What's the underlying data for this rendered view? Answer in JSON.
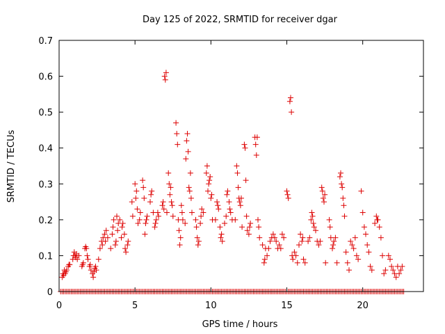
{
  "chart_data": {
    "type": "scatter",
    "title": "Day 125 of 2022, SRMTID for receiver dgar",
    "xlabel": "GPS time / hours",
    "ylabel": "SRMTID / TECUs",
    "xlim": [
      0,
      24
    ],
    "ylim": [
      0,
      0.7
    ],
    "xticks": [
      0,
      5,
      10,
      15,
      20
    ],
    "yticks": [
      0,
      0.1,
      0.2,
      0.3,
      0.4,
      0.5,
      0.6,
      0.7
    ],
    "xtick_labels": [
      "0",
      "5",
      "10",
      "15",
      "20"
    ],
    "ytick_labels": [
      "0",
      "0.1",
      "0.2",
      "0.3",
      "0.4",
      "0.5",
      "0.6",
      "0.7"
    ],
    "marker": "+",
    "color": "#dd0000",
    "baseline": {
      "y": 0,
      "x_start": 0.1,
      "x_end": 22.7,
      "step": 0.1
    },
    "points": [
      [
        0.2,
        0.04
      ],
      [
        0.25,
        0.05
      ],
      [
        0.3,
        0.045
      ],
      [
        0.35,
        0.06
      ],
      [
        0.4,
        0.05
      ],
      [
        0.45,
        0.055
      ],
      [
        0.5,
        0.06
      ],
      [
        0.6,
        0.07
      ],
      [
        0.65,
        0.075
      ],
      [
        0.7,
        0.075
      ],
      [
        0.9,
        0.09
      ],
      [
        0.95,
        0.1
      ],
      [
        1.0,
        0.11
      ],
      [
        1.05,
        0.1
      ],
      [
        1.1,
        0.095
      ],
      [
        1.15,
        0.105
      ],
      [
        1.2,
        0.09
      ],
      [
        1.3,
        0.1
      ],
      [
        1.5,
        0.07
      ],
      [
        1.55,
        0.075
      ],
      [
        1.6,
        0.08
      ],
      [
        1.7,
        0.12
      ],
      [
        1.75,
        0.125
      ],
      [
        1.8,
        0.12
      ],
      [
        1.85,
        0.1
      ],
      [
        1.9,
        0.09
      ],
      [
        2.0,
        0.07
      ],
      [
        2.05,
        0.075
      ],
      [
        2.1,
        0.06
      ],
      [
        2.2,
        0.05
      ],
      [
        2.25,
        0.04
      ],
      [
        2.3,
        0.055
      ],
      [
        2.35,
        0.065
      ],
      [
        2.4,
        0.07
      ],
      [
        2.45,
        0.06
      ],
      [
        2.6,
        0.09
      ],
      [
        2.7,
        0.12
      ],
      [
        2.8,
        0.14
      ],
      [
        2.85,
        0.13
      ],
      [
        2.9,
        0.15
      ],
      [
        3.0,
        0.16
      ],
      [
        3.05,
        0.14
      ],
      [
        3.1,
        0.17
      ],
      [
        3.2,
        0.15
      ],
      [
        3.4,
        0.12
      ],
      [
        3.5,
        0.16
      ],
      [
        3.55,
        0.18
      ],
      [
        3.6,
        0.2
      ],
      [
        3.7,
        0.13
      ],
      [
        3.75,
        0.14
      ],
      [
        3.8,
        0.21
      ],
      [
        3.85,
        0.17
      ],
      [
        3.9,
        0.19
      ],
      [
        4.0,
        0.2
      ],
      [
        4.1,
        0.15
      ],
      [
        4.15,
        0.18
      ],
      [
        4.2,
        0.19
      ],
      [
        4.3,
        0.16
      ],
      [
        4.35,
        0.12
      ],
      [
        4.4,
        0.11
      ],
      [
        4.5,
        0.13
      ],
      [
        4.55,
        0.14
      ],
      [
        4.8,
        0.25
      ],
      [
        4.85,
        0.21
      ],
      [
        5.0,
        0.3
      ],
      [
        5.05,
        0.26
      ],
      [
        5.1,
        0.28
      ],
      [
        5.15,
        0.23
      ],
      [
        5.2,
        0.19
      ],
      [
        5.3,
        0.2
      ],
      [
        5.35,
        0.22
      ],
      [
        5.5,
        0.31
      ],
      [
        5.55,
        0.29
      ],
      [
        5.6,
        0.26
      ],
      [
        5.65,
        0.16
      ],
      [
        5.7,
        0.19
      ],
      [
        5.75,
        0.2
      ],
      [
        5.8,
        0.21
      ],
      [
        6.0,
        0.25
      ],
      [
        6.05,
        0.27
      ],
      [
        6.1,
        0.28
      ],
      [
        6.2,
        0.22
      ],
      [
        6.3,
        0.18
      ],
      [
        6.35,
        0.19
      ],
      [
        6.4,
        0.2
      ],
      [
        6.5,
        0.22
      ],
      [
        6.55,
        0.21
      ],
      [
        6.8,
        0.24
      ],
      [
        6.85,
        0.25
      ],
      [
        6.9,
        0.23
      ],
      [
        6.95,
        0.6
      ],
      [
        7.0,
        0.59
      ],
      [
        7.05,
        0.61
      ],
      [
        7.1,
        0.22
      ],
      [
        7.2,
        0.33
      ],
      [
        7.25,
        0.3
      ],
      [
        7.3,
        0.27
      ],
      [
        7.35,
        0.29
      ],
      [
        7.4,
        0.25
      ],
      [
        7.45,
        0.24
      ],
      [
        7.5,
        0.21
      ],
      [
        7.7,
        0.47
      ],
      [
        7.75,
        0.44
      ],
      [
        7.8,
        0.41
      ],
      [
        7.85,
        0.2
      ],
      [
        7.9,
        0.17
      ],
      [
        7.95,
        0.13
      ],
      [
        8.0,
        0.15
      ],
      [
        8.05,
        0.24
      ],
      [
        8.1,
        0.22
      ],
      [
        8.15,
        0.2
      ],
      [
        8.3,
        0.19
      ],
      [
        8.35,
        0.37
      ],
      [
        8.4,
        0.42
      ],
      [
        8.45,
        0.44
      ],
      [
        8.5,
        0.39
      ],
      [
        8.55,
        0.29
      ],
      [
        8.6,
        0.28
      ],
      [
        8.65,
        0.33
      ],
      [
        8.7,
        0.26
      ],
      [
        8.75,
        0.22
      ],
      [
        9.0,
        0.2
      ],
      [
        9.05,
        0.18
      ],
      [
        9.1,
        0.15
      ],
      [
        9.15,
        0.13
      ],
      [
        9.2,
        0.14
      ],
      [
        9.3,
        0.19
      ],
      [
        9.35,
        0.21
      ],
      [
        9.4,
        0.23
      ],
      [
        9.5,
        0.22
      ],
      [
        9.7,
        0.33
      ],
      [
        9.75,
        0.35
      ],
      [
        9.8,
        0.28
      ],
      [
        9.85,
        0.3
      ],
      [
        9.9,
        0.31
      ],
      [
        9.95,
        0.32
      ],
      [
        10.0,
        0.26
      ],
      [
        10.05,
        0.27
      ],
      [
        10.1,
        0.2
      ],
      [
        10.3,
        0.2
      ],
      [
        10.4,
        0.25
      ],
      [
        10.45,
        0.24
      ],
      [
        10.5,
        0.23
      ],
      [
        10.6,
        0.18
      ],
      [
        10.65,
        0.15
      ],
      [
        10.7,
        0.16
      ],
      [
        10.75,
        0.14
      ],
      [
        10.9,
        0.19
      ],
      [
        11.0,
        0.21
      ],
      [
        11.05,
        0.27
      ],
      [
        11.1,
        0.28
      ],
      [
        11.2,
        0.25
      ],
      [
        11.25,
        0.23
      ],
      [
        11.3,
        0.22
      ],
      [
        11.4,
        0.2
      ],
      [
        11.6,
        0.2
      ],
      [
        11.7,
        0.35
      ],
      [
        11.75,
        0.33
      ],
      [
        11.8,
        0.29
      ],
      [
        11.85,
        0.26
      ],
      [
        11.9,
        0.25
      ],
      [
        11.95,
        0.24
      ],
      [
        12.0,
        0.26
      ],
      [
        12.05,
        0.18
      ],
      [
        12.2,
        0.41
      ],
      [
        12.25,
        0.4
      ],
      [
        12.3,
        0.31
      ],
      [
        12.35,
        0.21
      ],
      [
        12.4,
        0.17
      ],
      [
        12.5,
        0.16
      ],
      [
        12.55,
        0.18
      ],
      [
        12.6,
        0.19
      ],
      [
        12.9,
        0.43
      ],
      [
        12.95,
        0.41
      ],
      [
        13.0,
        0.38
      ],
      [
        13.05,
        0.43
      ],
      [
        13.1,
        0.2
      ],
      [
        13.15,
        0.18
      ],
      [
        13.2,
        0.15
      ],
      [
        13.4,
        0.13
      ],
      [
        13.5,
        0.08
      ],
      [
        13.55,
        0.09
      ],
      [
        13.6,
        0.12
      ],
      [
        13.7,
        0.1
      ],
      [
        13.8,
        0.12
      ],
      [
        13.9,
        0.14
      ],
      [
        14.0,
        0.15
      ],
      [
        14.1,
        0.16
      ],
      [
        14.2,
        0.15
      ],
      [
        14.3,
        0.14
      ],
      [
        14.4,
        0.12
      ],
      [
        14.5,
        0.13
      ],
      [
        14.6,
        0.12
      ],
      [
        14.7,
        0.16
      ],
      [
        14.8,
        0.15
      ],
      [
        15.0,
        0.28
      ],
      [
        15.05,
        0.27
      ],
      [
        15.1,
        0.26
      ],
      [
        15.2,
        0.53
      ],
      [
        15.25,
        0.54
      ],
      [
        15.3,
        0.5
      ],
      [
        15.35,
        0.1
      ],
      [
        15.4,
        0.09
      ],
      [
        15.5,
        0.11
      ],
      [
        15.6,
        0.1
      ],
      [
        15.7,
        0.08
      ],
      [
        15.8,
        0.13
      ],
      [
        15.9,
        0.16
      ],
      [
        16.0,
        0.14
      ],
      [
        16.05,
        0.15
      ],
      [
        16.1,
        0.09
      ],
      [
        16.2,
        0.08
      ],
      [
        16.4,
        0.14
      ],
      [
        16.5,
        0.15
      ],
      [
        16.6,
        0.2
      ],
      [
        16.65,
        0.22
      ],
      [
        16.7,
        0.21
      ],
      [
        16.75,
        0.19
      ],
      [
        16.8,
        0.18
      ],
      [
        16.9,
        0.17
      ],
      [
        17.0,
        0.14
      ],
      [
        17.1,
        0.13
      ],
      [
        17.2,
        0.14
      ],
      [
        17.3,
        0.29
      ],
      [
        17.35,
        0.28
      ],
      [
        17.4,
        0.26
      ],
      [
        17.45,
        0.25
      ],
      [
        17.5,
        0.27
      ],
      [
        17.55,
        0.08
      ],
      [
        17.8,
        0.2
      ],
      [
        17.85,
        0.18
      ],
      [
        17.9,
        0.15
      ],
      [
        18.0,
        0.12
      ],
      [
        18.05,
        0.13
      ],
      [
        18.1,
        0.14
      ],
      [
        18.2,
        0.15
      ],
      [
        18.3,
        0.08
      ],
      [
        18.5,
        0.32
      ],
      [
        18.55,
        0.33
      ],
      [
        18.6,
        0.3
      ],
      [
        18.65,
        0.29
      ],
      [
        18.7,
        0.26
      ],
      [
        18.75,
        0.24
      ],
      [
        18.8,
        0.21
      ],
      [
        18.9,
        0.11
      ],
      [
        19.0,
        0.08
      ],
      [
        19.1,
        0.06
      ],
      [
        19.2,
        0.14
      ],
      [
        19.3,
        0.13
      ],
      [
        19.4,
        0.12
      ],
      [
        19.5,
        0.15
      ],
      [
        19.6,
        0.1
      ],
      [
        19.7,
        0.09
      ],
      [
        19.9,
        0.28
      ],
      [
        20.0,
        0.22
      ],
      [
        20.1,
        0.18
      ],
      [
        20.2,
        0.16
      ],
      [
        20.3,
        0.13
      ],
      [
        20.4,
        0.11
      ],
      [
        20.5,
        0.07
      ],
      [
        20.6,
        0.06
      ],
      [
        20.8,
        0.19
      ],
      [
        20.9,
        0.21
      ],
      [
        20.95,
        0.2
      ],
      [
        21.0,
        0.2
      ],
      [
        21.1,
        0.18
      ],
      [
        21.2,
        0.15
      ],
      [
        21.3,
        0.1
      ],
      [
        21.4,
        0.05
      ],
      [
        21.5,
        0.06
      ],
      [
        21.7,
        0.1
      ],
      [
        21.8,
        0.09
      ],
      [
        21.9,
        0.07
      ],
      [
        22.0,
        0.06
      ],
      [
        22.1,
        0.05
      ],
      [
        22.2,
        0.04
      ],
      [
        22.3,
        0.07
      ],
      [
        22.4,
        0.05
      ],
      [
        22.5,
        0.06
      ],
      [
        22.6,
        0.07
      ]
    ]
  }
}
